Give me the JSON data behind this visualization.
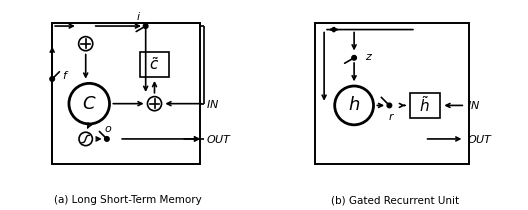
{
  "fig_width": 5.28,
  "fig_height": 2.1,
  "dpi": 100,
  "caption_a": "(a) Long Short-Term Memory",
  "caption_b": "(b) Gated Recurrent Unit",
  "lw": 1.2
}
